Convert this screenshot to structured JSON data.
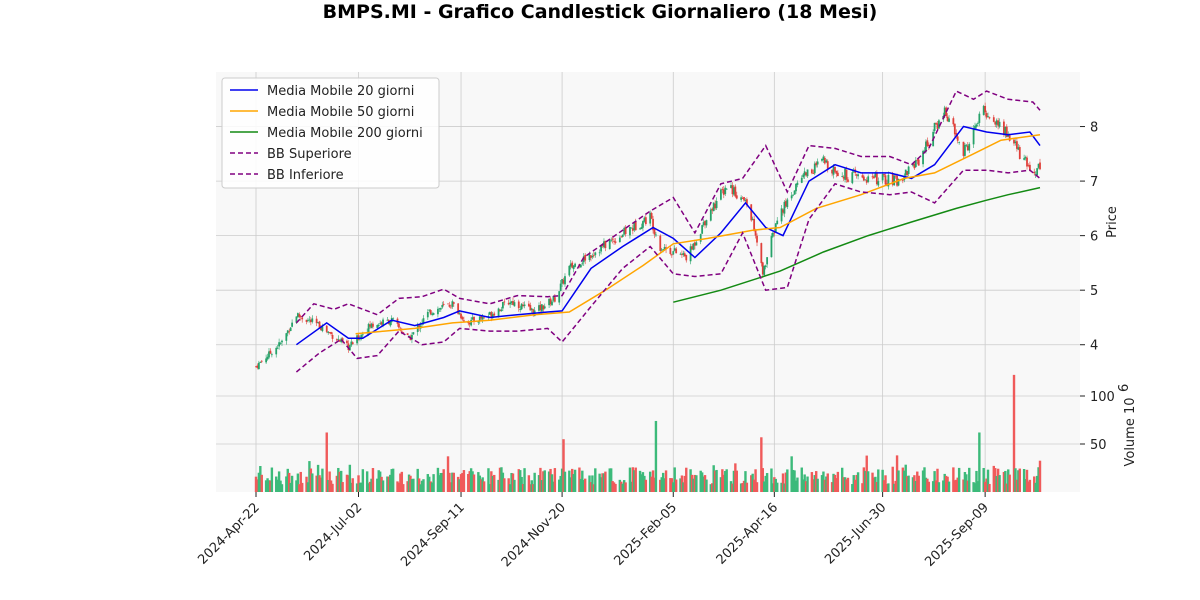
{
  "chart_data": {
    "type": "candlestick",
    "title": "BMPS.MI - Grafico Candlestick Giornaliero (18 Mesi)",
    "price_panel": {
      "ylabel": "Price",
      "ylim": [
        3.5,
        9.0
      ],
      "yticks": [
        4,
        5,
        6,
        7,
        8
      ],
      "grid": true,
      "legend_position": "upper-left"
    },
    "volume_panel": {
      "ylabel": "Volume",
      "ylabel_exponent": "10",
      "ylabel_exponent_power": "6",
      "ylim": [
        0,
        125
      ],
      "yticks": [
        50,
        100
      ],
      "grid": true
    },
    "xlim": [
      "2024-04-20",
      "2025-10-20"
    ],
    "xticks": [
      "2024-Apr-22",
      "2024-Jul-02",
      "2024-Sep-11",
      "2024-Nov-20",
      "2025-Feb-05",
      "2025-Apr-16",
      "2025-Jun-30",
      "2025-Sep-09"
    ],
    "xtick_dates": [
      "2024-04-22",
      "2024-07-02",
      "2024-09-11",
      "2024-11-20",
      "2025-02-05",
      "2025-04-16",
      "2025-06-30",
      "2025-09-09"
    ],
    "candle_colors": {
      "up": "#26a269",
      "down": "#e0403a"
    },
    "volume_colors": {
      "up": "#3cba7a",
      "down": "#f05a5a"
    },
    "close_keypoints": [
      {
        "date": "2024-04-22",
        "close": 3.6
      },
      {
        "date": "2024-05-10",
        "close": 4.05
      },
      {
        "date": "2024-05-20",
        "close": 4.55
      },
      {
        "date": "2024-06-05",
        "close": 4.35
      },
      {
        "date": "2024-06-25",
        "close": 3.95
      },
      {
        "date": "2024-07-10",
        "close": 4.35
      },
      {
        "date": "2024-07-25",
        "close": 4.45
      },
      {
        "date": "2024-08-06",
        "close": 4.1
      },
      {
        "date": "2024-08-20",
        "close": 4.6
      },
      {
        "date": "2024-09-05",
        "close": 4.75
      },
      {
        "date": "2024-09-15",
        "close": 4.4
      },
      {
        "date": "2024-10-01",
        "close": 4.55
      },
      {
        "date": "2024-10-15",
        "close": 4.8
      },
      {
        "date": "2024-11-01",
        "close": 4.6
      },
      {
        "date": "2024-11-15",
        "close": 4.85
      },
      {
        "date": "2024-11-25",
        "close": 5.4
      },
      {
        "date": "2024-12-15",
        "close": 5.75
      },
      {
        "date": "2025-01-05",
        "close": 6.1
      },
      {
        "date": "2025-01-20",
        "close": 6.35
      },
      {
        "date": "2025-01-27",
        "close": 5.8
      },
      {
        "date": "2025-02-15",
        "close": 5.6
      },
      {
        "date": "2025-03-01",
        "close": 6.4
      },
      {
        "date": "2025-03-15",
        "close": 6.95
      },
      {
        "date": "2025-03-30",
        "close": 6.5
      },
      {
        "date": "2025-04-08",
        "close": 5.3
      },
      {
        "date": "2025-04-18",
        "close": 6.3
      },
      {
        "date": "2025-05-05",
        "close": 7.1
      },
      {
        "date": "2025-05-20",
        "close": 7.35
      },
      {
        "date": "2025-06-05",
        "close": 7.1
      },
      {
        "date": "2025-06-20",
        "close": 7.05
      },
      {
        "date": "2025-07-10",
        "close": 7.0
      },
      {
        "date": "2025-07-25",
        "close": 7.4
      },
      {
        "date": "2025-08-12",
        "close": 8.3
      },
      {
        "date": "2025-08-25",
        "close": 7.5
      },
      {
        "date": "2025-09-08",
        "close": 8.3
      },
      {
        "date": "2025-09-25",
        "close": 7.85
      },
      {
        "date": "2025-10-10",
        "close": 7.2
      },
      {
        "date": "2025-10-17",
        "close": 7.25
      }
    ],
    "volume_spikes": [
      {
        "date": "2024-06-10",
        "volume": 62
      },
      {
        "date": "2024-11-21",
        "volume": 55
      },
      {
        "date": "2025-01-24",
        "volume": 74
      },
      {
        "date": "2025-04-07",
        "volume": 57
      },
      {
        "date": "2025-09-05",
        "volume": 62
      },
      {
        "date": "2025-09-29",
        "volume": 122
      }
    ],
    "series": [
      {
        "name": "Media Mobile 20 giorni",
        "color": "#0000ee",
        "style": "solid",
        "points": [
          [
            "2024-05-20",
            4.0
          ],
          [
            "2024-06-10",
            4.4
          ],
          [
            "2024-06-25",
            4.12
          ],
          [
            "2024-07-05",
            4.12
          ],
          [
            "2024-07-25",
            4.45
          ],
          [
            "2024-08-10",
            4.35
          ],
          [
            "2024-08-30",
            4.5
          ],
          [
            "2024-09-10",
            4.62
          ],
          [
            "2024-10-01",
            4.5
          ],
          [
            "2024-10-20",
            4.55
          ],
          [
            "2024-11-10",
            4.6
          ],
          [
            "2024-11-20",
            4.62
          ],
          [
            "2024-12-10",
            5.4
          ],
          [
            "2025-01-01",
            5.8
          ],
          [
            "2025-01-22",
            6.15
          ],
          [
            "2025-02-05",
            5.95
          ],
          [
            "2025-02-20",
            5.6
          ],
          [
            "2025-03-10",
            6.05
          ],
          [
            "2025-03-27",
            6.6
          ],
          [
            "2025-04-10",
            6.15
          ],
          [
            "2025-04-22",
            6.0
          ],
          [
            "2025-05-10",
            7.0
          ],
          [
            "2025-05-28",
            7.3
          ],
          [
            "2025-06-15",
            7.15
          ],
          [
            "2025-07-05",
            7.15
          ],
          [
            "2025-07-20",
            7.05
          ],
          [
            "2025-08-05",
            7.3
          ],
          [
            "2025-08-25",
            8.0
          ],
          [
            "2025-09-10",
            7.9
          ],
          [
            "2025-09-25",
            7.85
          ],
          [
            "2025-10-10",
            7.9
          ],
          [
            "2025-10-17",
            7.65
          ]
        ]
      },
      {
        "name": "Media Mobile 50 giorni",
        "color": "#ffa500",
        "style": "solid",
        "points": [
          [
            "2024-06-30",
            4.2
          ],
          [
            "2024-07-20",
            4.25
          ],
          [
            "2024-08-10",
            4.3
          ],
          [
            "2024-09-05",
            4.4
          ],
          [
            "2024-10-01",
            4.45
          ],
          [
            "2024-11-01",
            4.55
          ],
          [
            "2024-11-25",
            4.6
          ],
          [
            "2024-12-20",
            5.0
          ],
          [
            "2025-01-15",
            5.45
          ],
          [
            "2025-02-05",
            5.85
          ],
          [
            "2025-03-01",
            5.95
          ],
          [
            "2025-04-01",
            6.1
          ],
          [
            "2025-04-20",
            6.15
          ],
          [
            "2025-05-15",
            6.5
          ],
          [
            "2025-06-15",
            6.75
          ],
          [
            "2025-07-15",
            7.05
          ],
          [
            "2025-08-05",
            7.15
          ],
          [
            "2025-09-01",
            7.5
          ],
          [
            "2025-09-20",
            7.75
          ],
          [
            "2025-10-17",
            7.85
          ]
        ]
      },
      {
        "name": "Media Mobile 200 giorni",
        "color": "#138a13",
        "style": "solid",
        "points": [
          [
            "2025-02-05",
            4.78
          ],
          [
            "2025-03-10",
            5.0
          ],
          [
            "2025-04-20",
            5.35
          ],
          [
            "2025-05-20",
            5.7
          ],
          [
            "2025-06-20",
            6.0
          ],
          [
            "2025-07-20",
            6.25
          ],
          [
            "2025-08-20",
            6.5
          ],
          [
            "2025-09-10",
            6.65
          ],
          [
            "2025-09-25",
            6.75
          ],
          [
            "2025-10-17",
            6.88
          ]
        ]
      },
      {
        "name": "BB Superiore",
        "color": "#800080",
        "style": "dashed",
        "points": [
          [
            "2024-05-20",
            4.4
          ],
          [
            "2024-06-01",
            4.75
          ],
          [
            "2024-06-15",
            4.65
          ],
          [
            "2024-06-25",
            4.75
          ],
          [
            "2024-07-15",
            4.55
          ],
          [
            "2024-07-30",
            4.85
          ],
          [
            "2024-08-15",
            4.88
          ],
          [
            "2024-08-30",
            5.02
          ],
          [
            "2024-09-10",
            4.85
          ],
          [
            "2024-10-01",
            4.75
          ],
          [
            "2024-10-20",
            4.9
          ],
          [
            "2024-11-10",
            4.88
          ],
          [
            "2024-11-20",
            4.9
          ],
          [
            "2024-12-05",
            5.6
          ],
          [
            "2025-01-01",
            6.1
          ],
          [
            "2025-01-20",
            6.45
          ],
          [
            "2025-02-05",
            6.7
          ],
          [
            "2025-02-20",
            6.05
          ],
          [
            "2025-03-10",
            6.95
          ],
          [
            "2025-03-25",
            7.05
          ],
          [
            "2025-04-10",
            7.65
          ],
          [
            "2025-04-25",
            6.8
          ],
          [
            "2025-05-10",
            7.65
          ],
          [
            "2025-05-28",
            7.6
          ],
          [
            "2025-06-15",
            7.45
          ],
          [
            "2025-07-05",
            7.45
          ],
          [
            "2025-07-20",
            7.3
          ],
          [
            "2025-08-01",
            7.6
          ],
          [
            "2025-08-20",
            8.65
          ],
          [
            "2025-09-01",
            8.5
          ],
          [
            "2025-09-10",
            8.65
          ],
          [
            "2025-09-25",
            8.5
          ],
          [
            "2025-10-12",
            8.45
          ],
          [
            "2025-10-17",
            8.3
          ]
        ]
      },
      {
        "name": "BB Inferiore",
        "color": "#800080",
        "style": "dashed",
        "points": [
          [
            "2024-05-20",
            3.5
          ],
          [
            "2024-06-05",
            3.85
          ],
          [
            "2024-06-20",
            4.1
          ],
          [
            "2024-07-01",
            3.75
          ],
          [
            "2024-07-15",
            3.8
          ],
          [
            "2024-07-30",
            4.25
          ],
          [
            "2024-08-15",
            4.0
          ],
          [
            "2024-08-30",
            4.05
          ],
          [
            "2024-09-10",
            4.3
          ],
          [
            "2024-10-01",
            4.25
          ],
          [
            "2024-10-20",
            4.25
          ],
          [
            "2024-11-10",
            4.3
          ],
          [
            "2024-11-20",
            4.05
          ],
          [
            "2024-12-10",
            4.7
          ],
          [
            "2025-01-01",
            5.4
          ],
          [
            "2025-01-20",
            5.8
          ],
          [
            "2025-02-05",
            5.3
          ],
          [
            "2025-02-20",
            5.25
          ],
          [
            "2025-03-10",
            5.3
          ],
          [
            "2025-03-25",
            6.05
          ],
          [
            "2025-04-10",
            5.0
          ],
          [
            "2025-04-25",
            5.05
          ],
          [
            "2025-05-10",
            6.3
          ],
          [
            "2025-05-28",
            6.95
          ],
          [
            "2025-06-15",
            6.8
          ],
          [
            "2025-07-05",
            6.75
          ],
          [
            "2025-07-20",
            6.8
          ],
          [
            "2025-08-05",
            6.6
          ],
          [
            "2025-08-25",
            7.2
          ],
          [
            "2025-09-10",
            7.2
          ],
          [
            "2025-09-25",
            7.15
          ],
          [
            "2025-10-10",
            7.2
          ],
          [
            "2025-10-17",
            7.05
          ]
        ]
      }
    ]
  }
}
